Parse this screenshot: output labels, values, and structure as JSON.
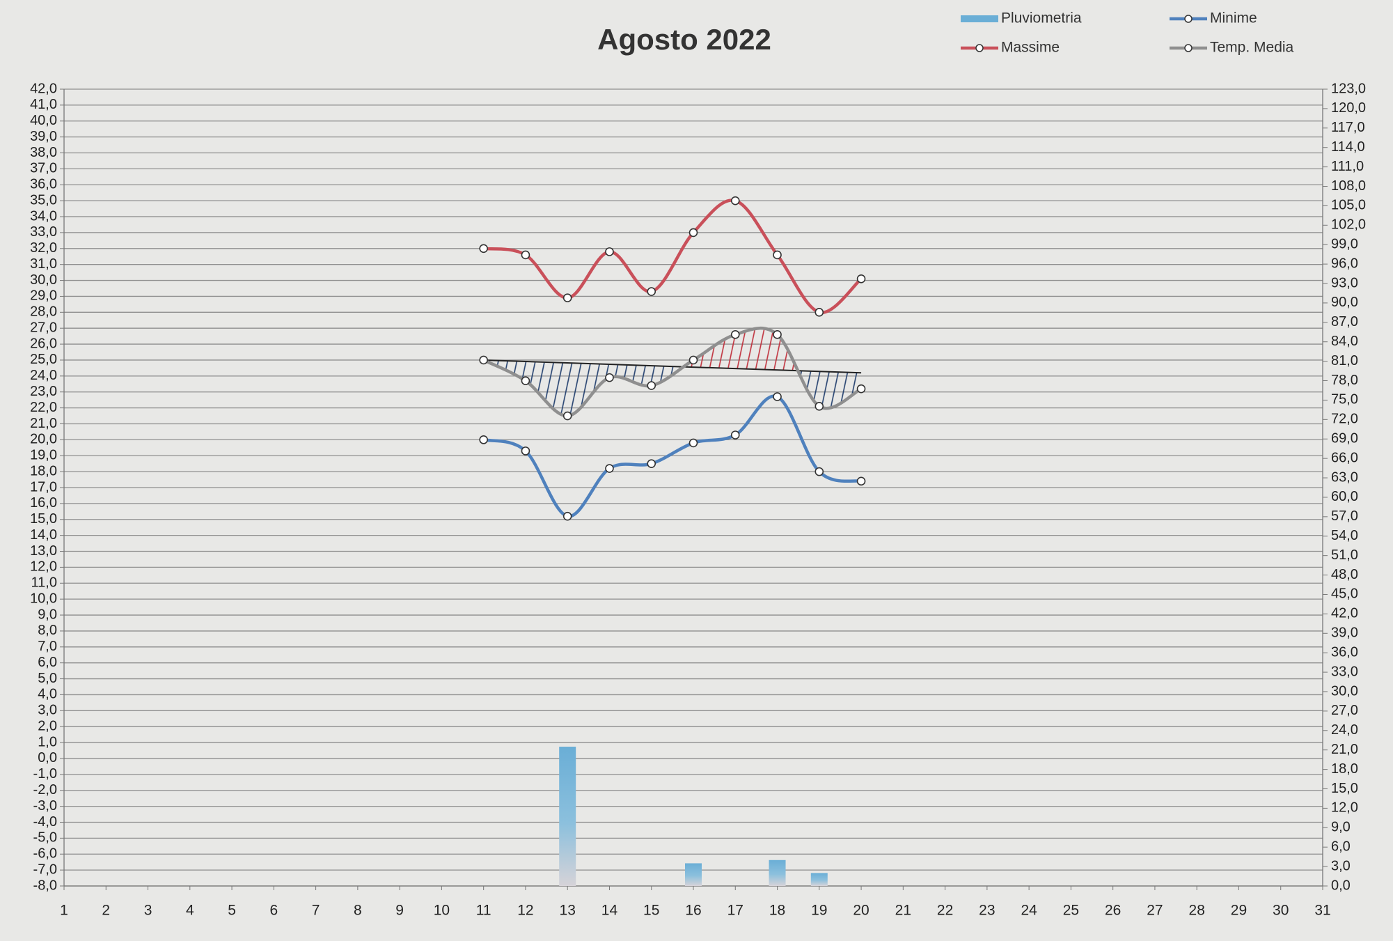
{
  "chart_data": {
    "type": "combo",
    "title": "Agosto 2022",
    "legend": "top-right",
    "grid": true,
    "xlim": [
      1,
      31
    ],
    "xticks": [
      1,
      2,
      3,
      4,
      5,
      6,
      7,
      8,
      9,
      10,
      11,
      12,
      13,
      14,
      15,
      16,
      17,
      18,
      19,
      20,
      21,
      22,
      23,
      24,
      25,
      26,
      27,
      28,
      29,
      30,
      31
    ],
    "ylim": [
      -8,
      42
    ],
    "yticks": [
      {
        "value": -8,
        "label": "-8,0"
      },
      {
        "value": -7,
        "label": "-7,0"
      },
      {
        "value": -6,
        "label": "-6,0"
      },
      {
        "value": -5,
        "label": "-5,0"
      },
      {
        "value": -4,
        "label": "-4,0"
      },
      {
        "value": -3,
        "label": "-3,0"
      },
      {
        "value": -2,
        "label": "-2,0"
      },
      {
        "value": -1,
        "label": "-1,0"
      },
      {
        "value": 0,
        "label": "0,0"
      },
      {
        "value": 1,
        "label": "1,0"
      },
      {
        "value": 2,
        "label": "2,0"
      },
      {
        "value": 3,
        "label": "3,0"
      },
      {
        "value": 4,
        "label": "4,0"
      },
      {
        "value": 5,
        "label": "5,0"
      },
      {
        "value": 6,
        "label": "6,0"
      },
      {
        "value": 7,
        "label": "7,0"
      },
      {
        "value": 8,
        "label": "8,0"
      },
      {
        "value": 9,
        "label": "9,0"
      },
      {
        "value": 10,
        "label": "10,0"
      },
      {
        "value": 11,
        "label": "11,0"
      },
      {
        "value": 12,
        "label": "12,0"
      },
      {
        "value": 13,
        "label": "13,0"
      },
      {
        "value": 14,
        "label": "14,0"
      },
      {
        "value": 15,
        "label": "15,0"
      },
      {
        "value": 16,
        "label": "16,0"
      },
      {
        "value": 17,
        "label": "17,0"
      },
      {
        "value": 18,
        "label": "18,0"
      },
      {
        "value": 19,
        "label": "19,0"
      },
      {
        "value": 20,
        "label": "20,0"
      },
      {
        "value": 21,
        "label": "21,0"
      },
      {
        "value": 22,
        "label": "22,0"
      },
      {
        "value": 23,
        "label": "23,0"
      },
      {
        "value": 24,
        "label": "24,0"
      },
      {
        "value": 25,
        "label": "25,0"
      },
      {
        "value": 26,
        "label": "26,0"
      },
      {
        "value": 27,
        "label": "27,0"
      },
      {
        "value": 28,
        "label": "28,0"
      },
      {
        "value": 29,
        "label": "29,0"
      },
      {
        "value": 30,
        "label": "30,0"
      },
      {
        "value": 31,
        "label": "31,0"
      },
      {
        "value": 32,
        "label": "32,0"
      },
      {
        "value": 33,
        "label": "33,0"
      },
      {
        "value": 34,
        "label": "34,0"
      },
      {
        "value": 35,
        "label": "35,0"
      },
      {
        "value": 36,
        "label": "36,0"
      },
      {
        "value": 37,
        "label": "37,0"
      },
      {
        "value": 38,
        "label": "38,0"
      },
      {
        "value": 39,
        "label": "39,0"
      },
      {
        "value": 40,
        "label": "40,0"
      },
      {
        "value": 41,
        "label": "41,0"
      },
      {
        "value": 42,
        "label": "42,0"
      }
    ],
    "y2lim": [
      0,
      123
    ],
    "y2ticks": [
      {
        "value": 0,
        "label": "0,0"
      },
      {
        "value": 3,
        "label": "3,0"
      },
      {
        "value": 6,
        "label": "6,0"
      },
      {
        "value": 9,
        "label": "9,0"
      },
      {
        "value": 12,
        "label": "12,0"
      },
      {
        "value": 15,
        "label": "15,0"
      },
      {
        "value": 18,
        "label": "18,0"
      },
      {
        "value": 21,
        "label": "21,0"
      },
      {
        "value": 24,
        "label": "24,0"
      },
      {
        "value": 27,
        "label": "27,0"
      },
      {
        "value": 30,
        "label": "30,0"
      },
      {
        "value": 33,
        "label": "33,0"
      },
      {
        "value": 36,
        "label": "36,0"
      },
      {
        "value": 39,
        "label": "39,0"
      },
      {
        "value": 42,
        "label": "42,0"
      },
      {
        "value": 45,
        "label": "45,0"
      },
      {
        "value": 48,
        "label": "48,0"
      },
      {
        "value": 51,
        "label": "51,0"
      },
      {
        "value": 54,
        "label": "54,0"
      },
      {
        "value": 57,
        "label": "57,0"
      },
      {
        "value": 60,
        "label": "60,0"
      },
      {
        "value": 63,
        "label": "63,0"
      },
      {
        "value": 66,
        "label": "66,0"
      },
      {
        "value": 69,
        "label": "69,0"
      },
      {
        "value": 72,
        "label": "72,0"
      },
      {
        "value": 75,
        "label": "75,0"
      },
      {
        "value": 78,
        "label": "78,0"
      },
      {
        "value": 81,
        "label": "81,0"
      },
      {
        "value": 84,
        "label": "84,0"
      },
      {
        "value": 87,
        "label": "87,0"
      },
      {
        "value": 90,
        "label": "90,0"
      },
      {
        "value": 93,
        "label": "93,0"
      },
      {
        "value": 96,
        "label": "96,0"
      },
      {
        "value": 99,
        "label": "99,0"
      },
      {
        "value": 102,
        "label": "102,0"
      },
      {
        "value": 105,
        "label": "105,0"
      },
      {
        "value": 108,
        "label": "108,0"
      },
      {
        "value": 111,
        "label": "111,0"
      },
      {
        "value": 114,
        "label": "114,0"
      },
      {
        "value": 117,
        "label": "117,0"
      },
      {
        "value": 120,
        "label": "120,0"
      },
      {
        "value": 123,
        "label": "123,0"
      }
    ],
    "x": [
      11,
      12,
      13,
      14,
      15,
      16,
      17,
      18,
      19,
      20
    ],
    "series": [
      {
        "name": "Pluviometria",
        "type": "bar",
        "axis": "y2",
        "color": "#6aaed6",
        "values": [
          0,
          0,
          21.5,
          0,
          0,
          3.5,
          0,
          4.0,
          2.0,
          0
        ]
      },
      {
        "name": "Massime",
        "type": "line",
        "color": "#c9505a",
        "values": [
          32.0,
          31.6,
          28.9,
          31.8,
          29.3,
          33.0,
          35.0,
          31.6,
          28.0,
          30.1
        ]
      },
      {
        "name": "Minime",
        "type": "line",
        "color": "#4f81bd",
        "values": [
          20.0,
          19.3,
          15.2,
          18.2,
          18.5,
          19.8,
          20.3,
          22.7,
          18.0,
          17.4
        ]
      },
      {
        "name": "Temp. Media",
        "type": "line",
        "color": "#8f8f8f",
        "values": [
          25.0,
          23.7,
          21.5,
          23.9,
          23.4,
          25.0,
          26.6,
          26.6,
          22.1,
          23.2
        ]
      }
    ],
    "reference_line": {
      "x": [
        11,
        20
      ],
      "values": [
        25.0,
        24.2
      ],
      "color": "#222222",
      "above_color": "#c0303c",
      "below_color": "#23406e"
    }
  }
}
